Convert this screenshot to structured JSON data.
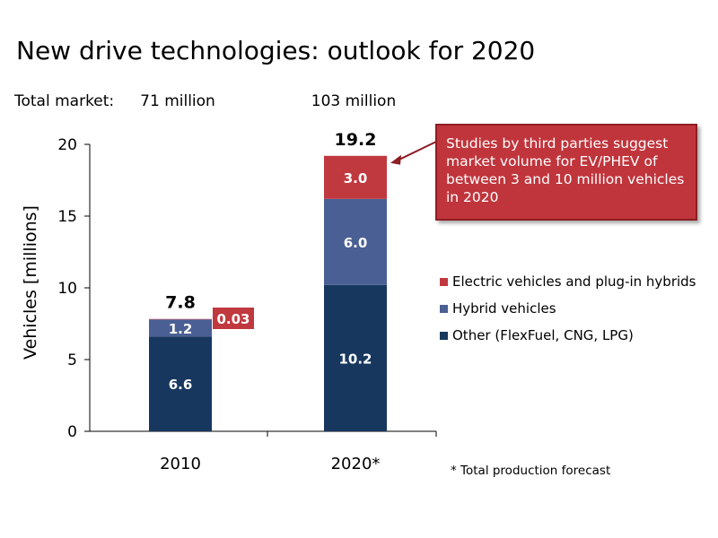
{
  "title": "New drive technologies: outlook for 2020",
  "total_market": {
    "label": "Total market:",
    "values": [
      "71 million",
      "103 million"
    ]
  },
  "callout_text": "Studies by third parties suggest market volume for EV/PHEV of between 3 and 10 million vehicles in 2020",
  "footnote": "* Total production forecast",
  "colors": {
    "other": "#17375e",
    "hybrid": "#4a5f93",
    "electric": "#c0393f",
    "callout": "#c0353c"
  },
  "chart_data": {
    "type": "bar",
    "stacked": true,
    "categories": [
      "2010",
      "2020*"
    ],
    "series": [
      {
        "name": "Other (FlexFuel, CNG, LPG)",
        "values": [
          6.6,
          10.2
        ],
        "labels": [
          "6.6",
          "10.2"
        ]
      },
      {
        "name": "Hybrid vehicles",
        "values": [
          1.2,
          6.0
        ],
        "labels": [
          "1.2",
          "6.0"
        ]
      },
      {
        "name": "Electric vehicles and plug-in hybrids",
        "values": [
          0.03,
          3.0
        ],
        "labels": [
          "0.03",
          "3.0"
        ]
      }
    ],
    "totals": [
      "7.8",
      "19.2"
    ],
    "ylabel": "Vehicles [millions]",
    "ylim": [
      0,
      20
    ],
    "yticks": [
      0,
      5,
      10,
      15,
      20
    ],
    "legend_position": "right",
    "grid": false
  }
}
